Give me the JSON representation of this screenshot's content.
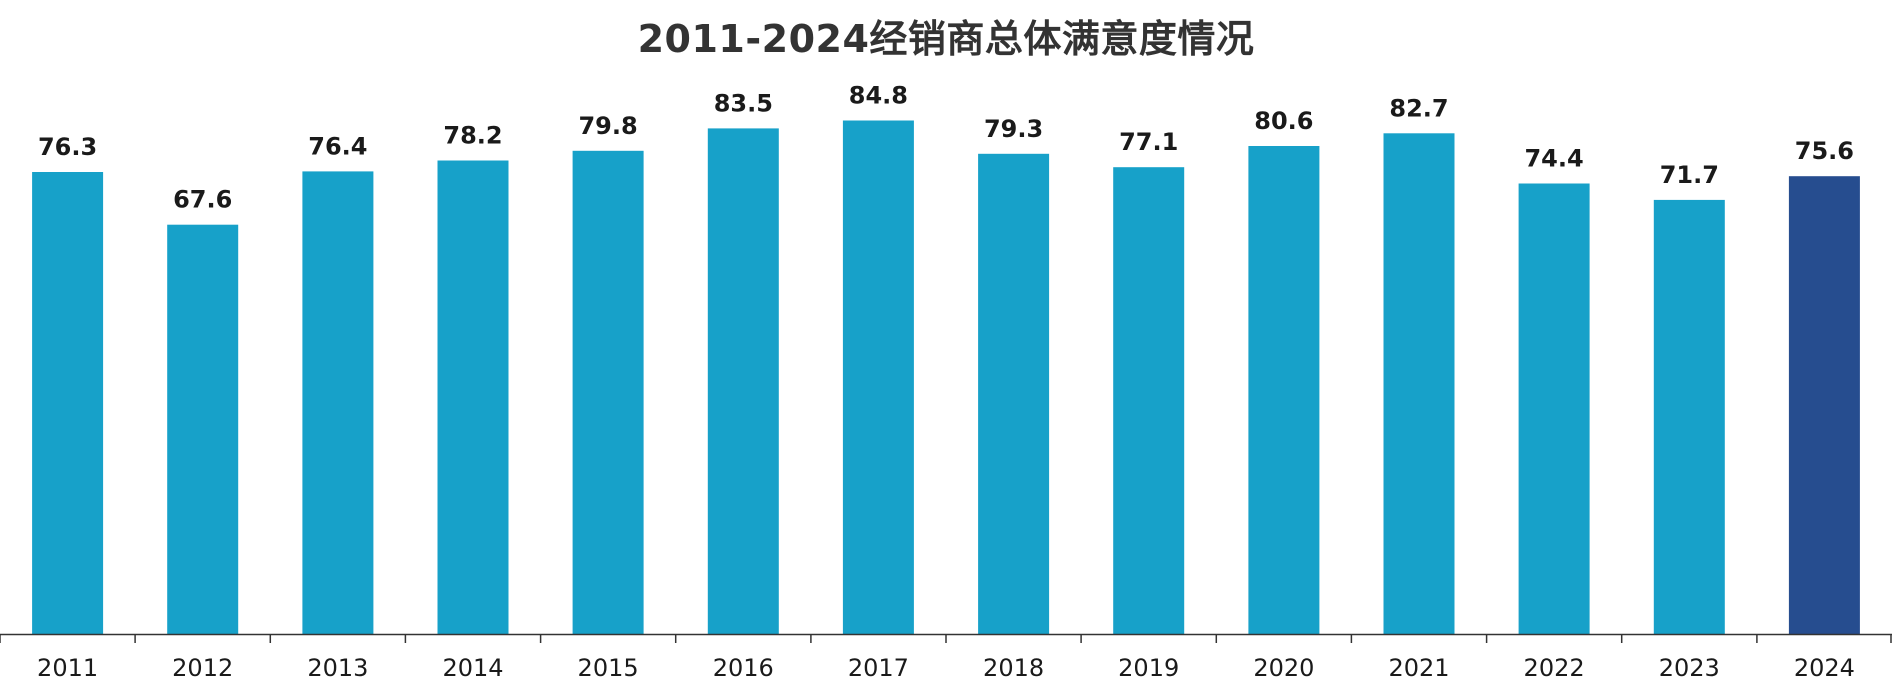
{
  "chart_data": {
    "type": "bar",
    "title": "2011-2024经销商总体满意度情况",
    "xlabel": "",
    "ylabel": "",
    "categories": [
      "2011",
      "2012",
      "2013",
      "2014",
      "2015",
      "2016",
      "2017",
      "2018",
      "2019",
      "2020",
      "2021",
      "2022",
      "2023",
      "2024"
    ],
    "values": [
      76.3,
      67.6,
      76.4,
      78.2,
      79.8,
      83.5,
      84.8,
      79.3,
      77.1,
      80.6,
      82.7,
      74.4,
      71.7,
      75.6
    ],
    "ylim": [
      0,
      100
    ],
    "grid": false,
    "legend": "none",
    "colors": {
      "bar": "#17a1c9",
      "highlight_bar": "#264d8f",
      "axis": "#333333"
    },
    "highlight_category": "2024"
  }
}
